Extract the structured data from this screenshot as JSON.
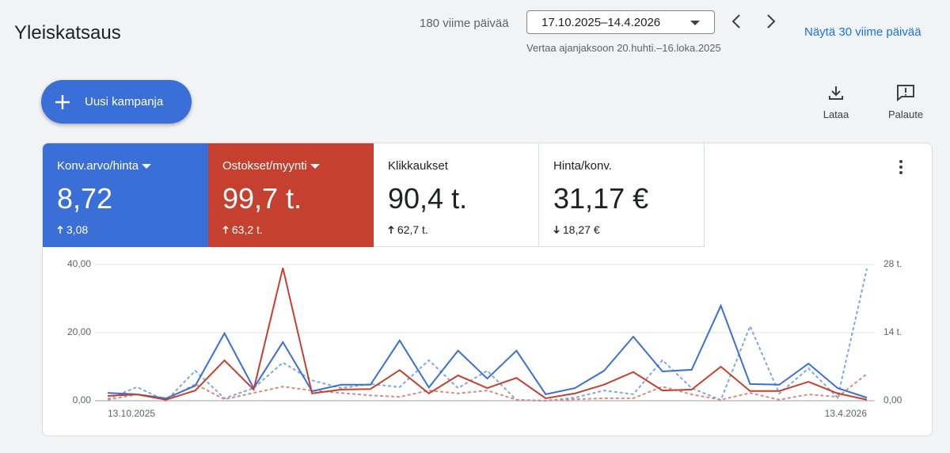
{
  "header": {
    "title": "Yleiskatsaus",
    "range_label": "180 viime päivää",
    "date_range": "17.10.2025–14.4.2026",
    "compare": "Vertaa ajanjaksoon 20.huhti.–16.loka.2025",
    "link": "Näytä 30 viime päivää"
  },
  "actions": {
    "new_campaign": "Uusi kampanja",
    "download": "Lataa",
    "feedback": "Palaute"
  },
  "metrics": [
    {
      "label": "Konv.arvo/hinta",
      "value": "8,72",
      "change": "3,08"
    },
    {
      "label": "Ostokset/myynti",
      "value": "99,7 t.",
      "change": "63,2 t."
    },
    {
      "label": "Klikkaukset",
      "value": "90,4 t.",
      "change": "62,7 t."
    },
    {
      "label": "Hinta/konv.",
      "value": "31,17 €",
      "change": "18,27 €"
    }
  ],
  "chart_data": {
    "type": "line",
    "categories": [
      "13.10.2025",
      null,
      null,
      null,
      null,
      null,
      null,
      null,
      null,
      null,
      null,
      null,
      null,
      null,
      null,
      null,
      null,
      null,
      null,
      null,
      null,
      null,
      null,
      null,
      null,
      null,
      "13.4.2026"
    ],
    "ylim": [
      0,
      40
    ],
    "yticks": [
      {
        "value": 0,
        "label": "0,00"
      },
      {
        "value": 20,
        "label": "20,00"
      },
      {
        "value": 40,
        "label": "40,00"
      }
    ],
    "y2lim": [
      0,
      28000
    ],
    "y2ticks": [
      {
        "value": 0,
        "label": "0,00"
      },
      {
        "value": 14000,
        "label": "14 t."
      },
      {
        "value": 28000,
        "label": "28 t."
      }
    ],
    "grid": true,
    "series": [
      {
        "color": "#3a6fd8",
        "axis": "y",
        "dashed": false,
        "values": [
          2.3,
          1.9,
          0.7,
          4.4,
          19.8,
          3.7,
          17.2,
          2.8,
          4.7,
          4.7,
          17.7,
          3.9,
          14.7,
          6.5,
          14.7,
          1.9,
          3.7,
          8.8,
          18.8,
          8.6,
          9.1,
          27.9,
          4.9,
          4.7,
          10.9,
          3.7,
          0.9
        ]
      },
      {
        "color": "#c5402f",
        "axis": "y2",
        "dashed": false,
        "values": [
          1000,
          1300,
          200,
          2100,
          8300,
          2300,
          27300,
          1500,
          2300,
          2400,
          6300,
          1500,
          5200,
          2600,
          4700,
          500,
          1500,
          3300,
          5900,
          2100,
          2300,
          7000,
          2000,
          2000,
          3900,
          1500,
          200
        ]
      },
      {
        "color": "#7fa7e8",
        "axis": "y",
        "dashed": true,
        "values": [
          0.5,
          4,
          0,
          8.8,
          0.7,
          3.7,
          11.2,
          6,
          3.7,
          4.9,
          4,
          11.9,
          3.7,
          8.8,
          0.2,
          0,
          0.9,
          3,
          1.9,
          11.9,
          3.7,
          0.2,
          21.9,
          2.1,
          9.5,
          0.9,
          38.8
        ]
      },
      {
        "color": "#dc8a80",
        "axis": "y2",
        "dashed": true,
        "values": [
          200,
          1300,
          200,
          3400,
          300,
          1600,
          2900,
          2100,
          1600,
          1100,
          800,
          2100,
          1500,
          2100,
          200,
          0,
          300,
          500,
          500,
          2900,
          1300,
          200,
          1600,
          200,
          1300,
          800,
          5500
        ]
      }
    ]
  }
}
